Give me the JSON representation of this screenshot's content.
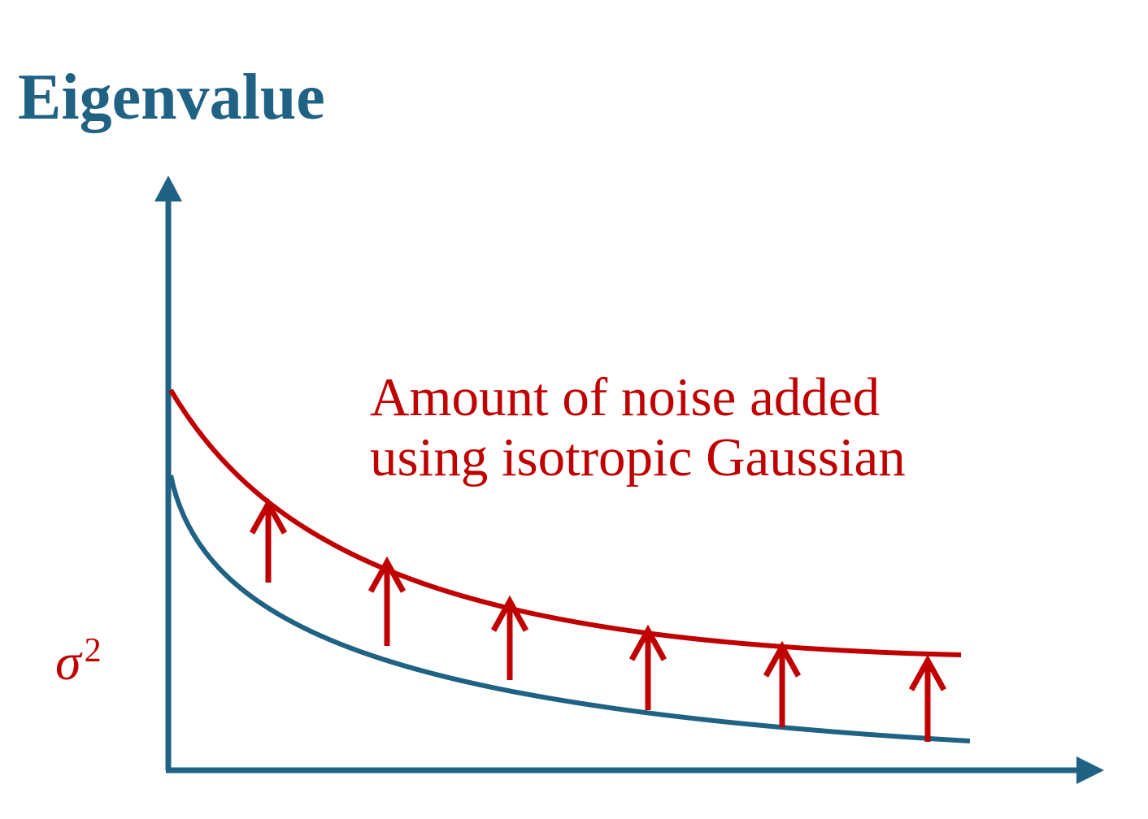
{
  "title": "Eigenvalue",
  "annotation": {
    "line1": "Amount of noise added",
    "line2": "using isotropic Gaussian"
  },
  "y_marker": {
    "symbol": "σ",
    "superscript": "2"
  },
  "colors": {
    "axis": "#1f6283",
    "noise": "#c00000",
    "title": "#1f6283"
  }
}
